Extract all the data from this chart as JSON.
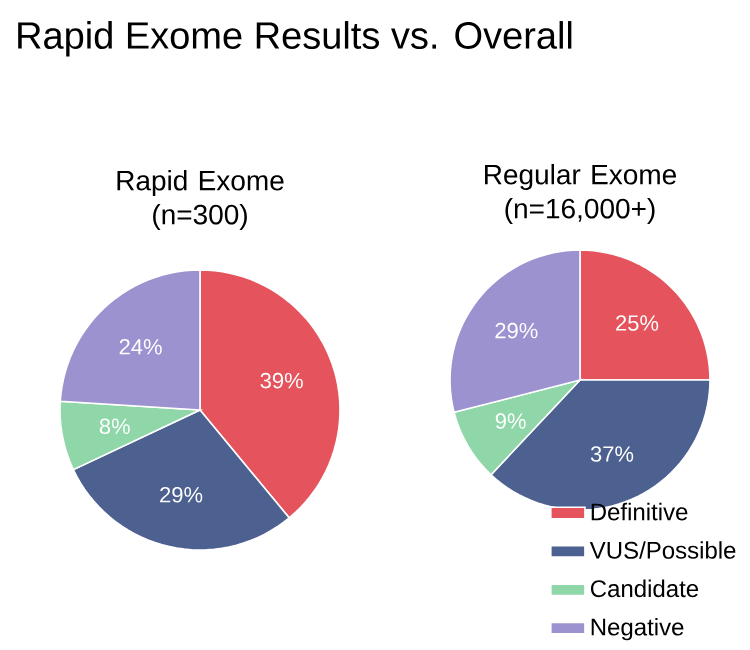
{
  "chart_data": [
    {
      "type": "pie",
      "title": "Rapid Exome (n=300)",
      "annotations": [
        "Rapid Exome Results vs. Overall"
      ],
      "categories": [
        null,
        null,
        null,
        null
      ],
      "values": [
        39,
        29,
        8,
        24
      ],
      "value_labels": [
        "39%",
        "29%",
        "8%",
        "24%"
      ],
      "colors": [
        "#e5535c",
        "#4d6190",
        "#8fd6a9",
        "#9c92cf"
      ],
      "legend": false
    },
    {
      "type": "pie",
      "title": "Regular Exome (n=16,000+)",
      "categories": [
        "Definitive",
        "VUS/Possible",
        "Candidate",
        "Negative"
      ],
      "values": [
        25,
        37,
        9,
        29
      ],
      "value_labels": [
        "25%",
        "37%",
        "9%",
        "29%"
      ],
      "colors": [
        "#e5535c",
        "#4d6190",
        "#8fd6a9",
        "#9c92cf"
      ],
      "legend": "bottom right"
    }
  ]
}
